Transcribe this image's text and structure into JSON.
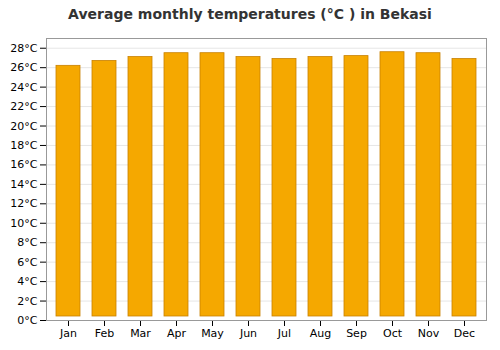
{
  "chart_data": {
    "type": "bar",
    "title": "Average monthly temperatures (°C ) in Bekasi",
    "categories": [
      "Jan",
      "Feb",
      "Mar",
      "Apr",
      "May",
      "Jun",
      "Jul",
      "Aug",
      "Sep",
      "Oct",
      "Nov",
      "Dec"
    ],
    "values": [
      26.6,
      27.1,
      27.5,
      27.9,
      27.9,
      27.5,
      27.3,
      27.5,
      27.6,
      28.0,
      27.9,
      27.3
    ],
    "color": "#F5A800",
    "ylim": [
      0,
      29
    ],
    "yticks": [
      {
        "value": 0,
        "label": "0°C"
      },
      {
        "value": 2,
        "label": "2°C"
      },
      {
        "value": 4,
        "label": "4°C"
      },
      {
        "value": 6,
        "label": "6°C"
      },
      {
        "value": 8,
        "label": "8°C"
      },
      {
        "value": 10,
        "label": "10°C"
      },
      {
        "value": 12,
        "label": "12°C"
      },
      {
        "value": 14,
        "label": "14°C"
      },
      {
        "value": 16,
        "label": "16°C"
      },
      {
        "value": 18,
        "label": "18°C"
      },
      {
        "value": 20,
        "label": "20°C"
      },
      {
        "value": 22,
        "label": "22°C"
      },
      {
        "value": 24,
        "label": "24°C"
      },
      {
        "value": 26,
        "label": "26°C"
      },
      {
        "value": 28,
        "label": "28°C"
      }
    ],
    "grid": true
  }
}
